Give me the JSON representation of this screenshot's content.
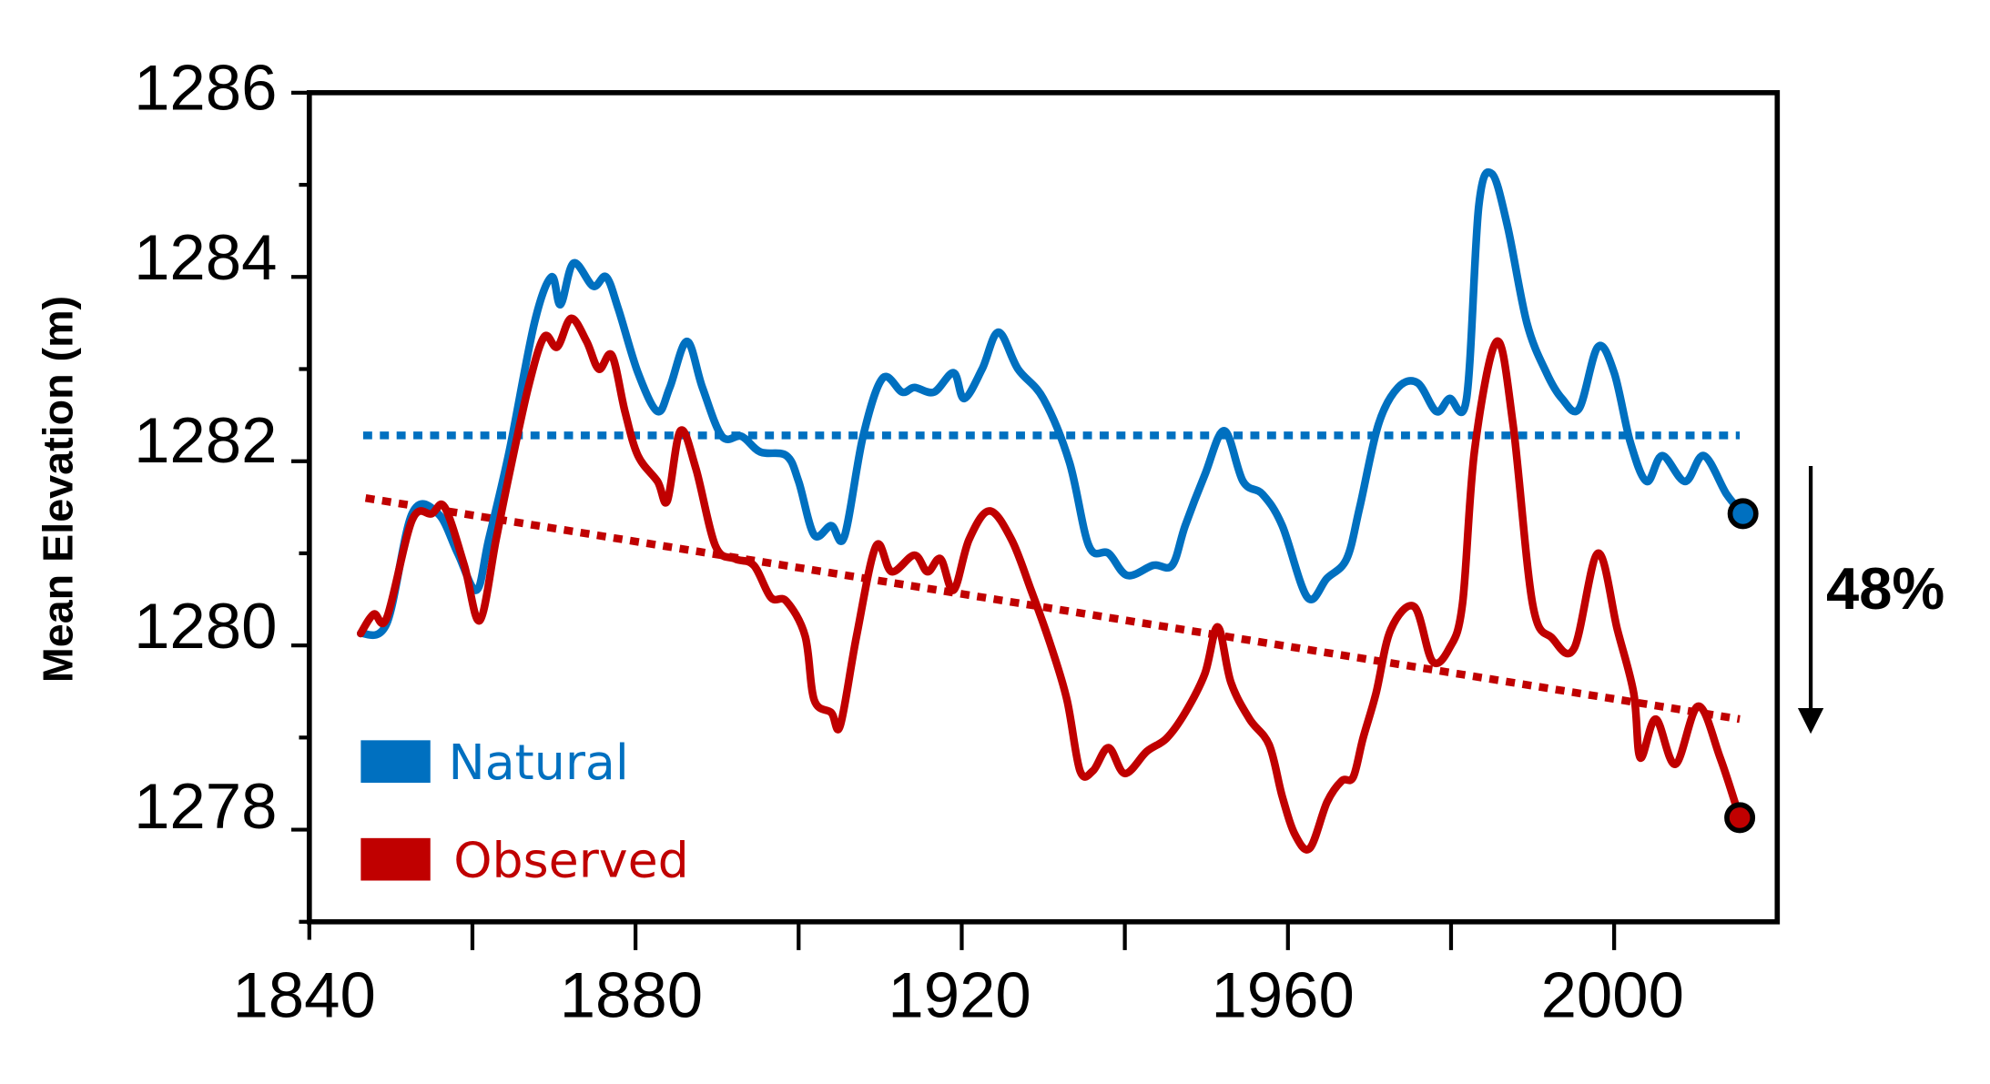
{
  "chart_data": {
    "type": "line",
    "ylabel": "Mean Elevation (m)",
    "xlabel": "",
    "xlim": [
      1840,
      2020
    ],
    "ylim": [
      1277,
      1286
    ],
    "x_ticks": [
      "1840",
      "1880",
      "1920",
      "1960",
      "2000"
    ],
    "y_ticks": [
      "1278",
      "1280",
      "1282",
      "1284",
      "1286"
    ],
    "grid": false,
    "legend_position": "bottom-left",
    "colors": {
      "natural": "#0070C0",
      "observed": "#C00000"
    },
    "series": [
      {
        "name": "Natural",
        "color": "#0070C0",
        "x": [
          1846.3,
          1849.5,
          1852.6,
          1855.8,
          1858.2,
          1860.5,
          1862,
          1864.5,
          1867.6,
          1869.7,
          1870.8,
          1872.4,
          1874.8,
          1876.4,
          1877.9,
          1880.3,
          1882.7,
          1884.2,
          1886.3,
          1888.2,
          1890.6,
          1893,
          1895.3,
          1898.5,
          1900,
          1901.9,
          1904,
          1905.6,
          1907.9,
          1910.3,
          1912.7,
          1914.2,
          1916.6,
          1919,
          1920.3,
          1922.5,
          1924.5,
          1926.9,
          1930,
          1933.2,
          1935.6,
          1938,
          1940.3,
          1943.5,
          1945.8,
          1947.4,
          1949.8,
          1952.2,
          1954.5,
          1956.9,
          1959.3,
          1962.4,
          1964.8,
          1967.2,
          1968.8,
          1971.1,
          1973.5,
          1975.9,
          1978.2,
          1979.8,
          1981.9,
          1983.4,
          1985,
          1986.9,
          1989.3,
          1991.7,
          1993.6,
          1995.7,
          1998,
          2000,
          2002,
          2004,
          2005.9,
          2008.7,
          2011,
          2013.8,
          2015.8
        ],
        "y": [
          1280.13,
          1280.24,
          1281.43,
          1281.43,
          1281.0,
          1280.6,
          1281.15,
          1282.1,
          1283.5,
          1284.0,
          1283.7,
          1284.15,
          1283.9,
          1284.0,
          1283.65,
          1282.96,
          1282.54,
          1282.8,
          1283.3,
          1282.8,
          1282.27,
          1282.27,
          1282.1,
          1282.06,
          1281.78,
          1281.2,
          1281.3,
          1281.18,
          1282.27,
          1282.9,
          1282.75,
          1282.8,
          1282.75,
          1282.96,
          1282.68,
          1283.0,
          1283.4,
          1283.0,
          1282.68,
          1281.99,
          1281.08,
          1281.0,
          1280.76,
          1280.87,
          1280.87,
          1281.3,
          1281.85,
          1282.33,
          1281.78,
          1281.64,
          1281.3,
          1280.52,
          1280.73,
          1280.94,
          1281.5,
          1282.4,
          1282.8,
          1282.85,
          1282.54,
          1282.68,
          1282.68,
          1284.77,
          1285.12,
          1284.56,
          1283.5,
          1282.96,
          1282.68,
          1282.57,
          1283.24,
          1282.96,
          1282.2,
          1281.78,
          1282.06,
          1281.78,
          1282.06,
          1281.64,
          1281.43
        ],
        "trend": {
          "x": [
            1846.6,
            2015.4
          ],
          "y": [
            1282.28,
            1282.28
          ]
        }
      },
      {
        "name": "Observed",
        "color": "#C00000",
        "x": [
          1846.3,
          1847.9,
          1849.5,
          1852.6,
          1855,
          1856.6,
          1859,
          1860.9,
          1862.9,
          1864.5,
          1866.9,
          1868.8,
          1870.4,
          1872.1,
          1874,
          1875.5,
          1877.1,
          1878.7,
          1880.3,
          1882.7,
          1883.9,
          1885.5,
          1887.4,
          1889.8,
          1892.2,
          1894.5,
          1896.6,
          1898.5,
          1900.8,
          1901.9,
          1904,
          1905.1,
          1907.1,
          1909.5,
          1911.4,
          1914.2,
          1915.8,
          1917.4,
          1919,
          1920.9,
          1923.4,
          1926.1,
          1928.5,
          1930.8,
          1932.9,
          1934.5,
          1936.1,
          1938,
          1940,
          1942.7,
          1945.1,
          1947.4,
          1949.8,
          1951.4,
          1953,
          1955.3,
          1957.7,
          1959.3,
          1960.9,
          1962.7,
          1964.8,
          1966.6,
          1968,
          1969.2,
          1970.8,
          1972.6,
          1975.5,
          1977.7,
          1979.8,
          1981.4,
          1982.9,
          1985.6,
          1987.6,
          1990,
          1992.4,
          1995.1,
          1998,
          2000.4,
          2002.4,
          2003.2,
          2005.1,
          2007.5,
          2010.3,
          2013,
          2015.4
        ],
        "y": [
          1280.13,
          1280.34,
          1280.3,
          1281.36,
          1281.43,
          1281.5,
          1280.87,
          1280.27,
          1281.15,
          1281.85,
          1282.82,
          1283.35,
          1283.24,
          1283.55,
          1283.3,
          1283.0,
          1283.15,
          1282.54,
          1282.06,
          1281.78,
          1281.57,
          1282.33,
          1281.92,
          1281.08,
          1280.94,
          1280.87,
          1280.52,
          1280.48,
          1280.1,
          1279.41,
          1279.27,
          1279.13,
          1280.1,
          1281.08,
          1280.8,
          1280.98,
          1280.8,
          1280.94,
          1280.6,
          1281.15,
          1281.46,
          1281.15,
          1280.6,
          1280.03,
          1279.41,
          1278.64,
          1278.64,
          1278.89,
          1278.61,
          1278.85,
          1278.99,
          1279.27,
          1279.69,
          1280.2,
          1279.6,
          1279.2,
          1278.92,
          1278.36,
          1277.94,
          1277.8,
          1278.3,
          1278.53,
          1278.57,
          1278.99,
          1279.48,
          1280.17,
          1280.42,
          1279.83,
          1279.97,
          1280.45,
          1282.13,
          1283.3,
          1282.4,
          1280.45,
          1280.08,
          1279.97,
          1281.0,
          1280.17,
          1279.48,
          1278.78,
          1279.2,
          1278.71,
          1279.34,
          1278.78,
          1278.13
        ],
        "trend": {
          "x": [
            1846.9,
            2015.4
          ],
          "y": [
            1281.6,
            1279.2
          ]
        }
      }
    ],
    "annotations": [
      {
        "text": "48%",
        "arrow": "down"
      }
    ]
  }
}
